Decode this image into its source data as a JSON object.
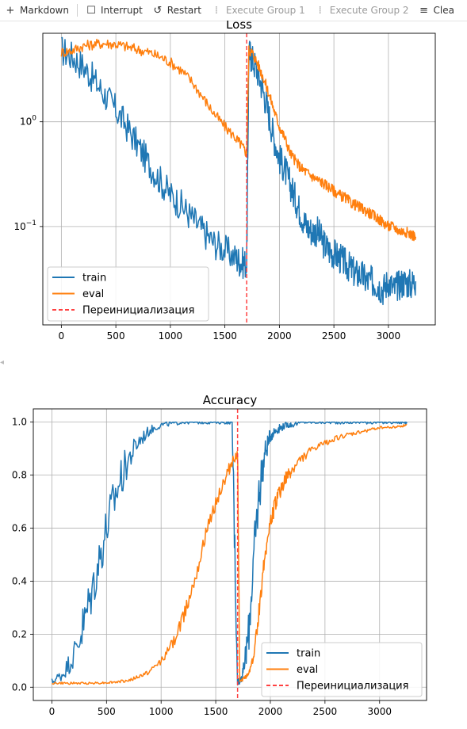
{
  "toolbar": {
    "items": [
      {
        "label": "Markdown",
        "icon": "plus-icon",
        "enabled": true
      },
      {
        "label": "Interrupt",
        "icon": "stop-icon",
        "enabled": true
      },
      {
        "label": "Restart",
        "icon": "restart-icon",
        "enabled": true
      },
      {
        "label": "Execute Group 1",
        "icon": "execute-group-icon",
        "enabled": false
      },
      {
        "label": "Execute Group 2",
        "icon": "execute-group-icon",
        "enabled": false
      },
      {
        "label": "Clea",
        "icon": "clear-outputs-icon",
        "enabled": true
      }
    ]
  },
  "chart_data": [
    {
      "type": "line",
      "title": "Loss",
      "xlabel": "",
      "ylabel": "",
      "yscale": "log",
      "xlim": [
        -170,
        3430
      ],
      "ylim": [
        0.0115,
        7
      ],
      "xticks": [
        0,
        500,
        1000,
        1500,
        2000,
        2500,
        3000
      ],
      "yticks": [
        {
          "value": 1,
          "label": "10^0"
        },
        {
          "value": 0.1,
          "label": "10^−1"
        }
      ],
      "grid": true,
      "legend_position": "lower-left",
      "colors": {
        "train": "#1f77b4",
        "eval": "#ff7f0e",
        "reinit": "#ff4040"
      },
      "vline": {
        "x": 1700,
        "label": "Переинициализация"
      },
      "series": [
        {
          "name": "train",
          "x": [
            0,
            100,
            200,
            300,
            400,
            500,
            600,
            700,
            800,
            900,
            1000,
            1100,
            1200,
            1300,
            1400,
            1500,
            1600,
            1650,
            1700,
            1720,
            1750,
            1800,
            1850,
            1900,
            1950,
            2000,
            2050,
            2100,
            2150,
            2200,
            2250,
            2300,
            2350,
            2400,
            2450,
            2500,
            2550,
            2600,
            2650,
            2700,
            2750,
            2800,
            2850,
            2900,
            2950,
            3000,
            3050,
            3100,
            3150,
            3200,
            3250
          ],
          "y": [
            4.8,
            4.2,
            3.4,
            2.5,
            1.8,
            1.3,
            0.9,
            0.6,
            0.4,
            0.28,
            0.2,
            0.16,
            0.12,
            0.09,
            0.07,
            0.06,
            0.05,
            0.045,
            0.045,
            4.6,
            4.0,
            3.0,
            2.0,
            1.2,
            0.7,
            0.45,
            0.35,
            0.25,
            0.18,
            0.13,
            0.1,
            0.09,
            0.09,
            0.07,
            0.06,
            0.055,
            0.05,
            0.045,
            0.04,
            0.035,
            0.035,
            0.03,
            0.03,
            0.028,
            0.025,
            0.03,
            0.025,
            0.028,
            0.03,
            0.028,
            0.03
          ]
        },
        {
          "name": "eval",
          "x": [
            0,
            100,
            200,
            300,
            400,
            500,
            600,
            700,
            800,
            900,
            1000,
            1100,
            1200,
            1300,
            1400,
            1500,
            1600,
            1650,
            1700,
            1720,
            1750,
            1800,
            1850,
            1900,
            1950,
            2000,
            2050,
            2100,
            2150,
            2200,
            2250,
            2300,
            2350,
            2400,
            2450,
            2500,
            2550,
            2600,
            2650,
            2700,
            2750,
            2800,
            2850,
            2900,
            2950,
            3000,
            3050,
            3100,
            3150,
            3200,
            3250
          ],
          "y": [
            4.6,
            4.8,
            5.3,
            5.5,
            5.6,
            5.5,
            5.2,
            4.9,
            4.6,
            4.2,
            3.7,
            3.1,
            2.4,
            1.7,
            1.2,
            0.9,
            0.7,
            0.6,
            0.5,
            4.8,
            4.6,
            3.6,
            2.7,
            1.9,
            1.3,
            0.9,
            0.7,
            0.5,
            0.42,
            0.36,
            0.33,
            0.3,
            0.28,
            0.26,
            0.24,
            0.22,
            0.2,
            0.19,
            0.17,
            0.16,
            0.15,
            0.14,
            0.13,
            0.12,
            0.11,
            0.1,
            0.1,
            0.09,
            0.09,
            0.085,
            0.08
          ]
        }
      ]
    },
    {
      "type": "line",
      "title": "Accuracy",
      "xlabel": "",
      "ylabel": "",
      "xlim": [
        -170,
        3430
      ],
      "ylim": [
        -0.05,
        1.05
      ],
      "xticks": [
        0,
        500,
        1000,
        1500,
        2000,
        2500,
        3000
      ],
      "yticks": [
        0.0,
        0.2,
        0.4,
        0.6,
        0.8,
        1.0
      ],
      "grid": true,
      "legend_position": "lower-right",
      "colors": {
        "train": "#1f77b4",
        "eval": "#ff7f0e",
        "reinit": "#ff4040"
      },
      "vline": {
        "x": 1700,
        "label": "Переинициализация"
      },
      "series": [
        {
          "name": "train",
          "x": [
            0,
            100,
            200,
            300,
            400,
            500,
            600,
            700,
            800,
            900,
            1000,
            1100,
            1200,
            1300,
            1400,
            1500,
            1600,
            1650,
            1700,
            1720,
            1750,
            1800,
            1850,
            1900,
            1950,
            2000,
            2050,
            2100,
            2150,
            2200,
            2300,
            2400,
            2500,
            2600,
            2700,
            2800,
            2900,
            3000,
            3100,
            3200,
            3250
          ],
          "y": [
            0.02,
            0.05,
            0.12,
            0.25,
            0.42,
            0.6,
            0.75,
            0.86,
            0.93,
            0.97,
            0.99,
            0.995,
            1.0,
            1.0,
            1.0,
            1.0,
            1.0,
            1.0,
            0.02,
            0.03,
            0.05,
            0.2,
            0.5,
            0.75,
            0.88,
            0.95,
            0.97,
            0.98,
            0.99,
            0.99,
            1.0,
            1.0,
            1.0,
            1.0,
            1.0,
            1.0,
            1.0,
            1.0,
            1.0,
            1.0,
            1.0
          ]
        },
        {
          "name": "eval",
          "x": [
            0,
            100,
            200,
            300,
            400,
            500,
            600,
            700,
            800,
            900,
            1000,
            1100,
            1200,
            1300,
            1400,
            1500,
            1600,
            1650,
            1700,
            1720,
            1750,
            1800,
            1850,
            1900,
            1950,
            2000,
            2050,
            2100,
            2150,
            2200,
            2300,
            2400,
            2500,
            2600,
            2700,
            2800,
            2900,
            3000,
            3100,
            3200,
            3250
          ],
          "y": [
            0.015,
            0.015,
            0.015,
            0.015,
            0.016,
            0.017,
            0.02,
            0.025,
            0.04,
            0.06,
            0.1,
            0.16,
            0.26,
            0.4,
            0.56,
            0.7,
            0.8,
            0.85,
            0.88,
            0.02,
            0.03,
            0.05,
            0.12,
            0.3,
            0.5,
            0.62,
            0.7,
            0.75,
            0.79,
            0.82,
            0.87,
            0.9,
            0.92,
            0.94,
            0.95,
            0.96,
            0.97,
            0.98,
            0.98,
            0.985,
            0.99
          ]
        }
      ]
    }
  ]
}
